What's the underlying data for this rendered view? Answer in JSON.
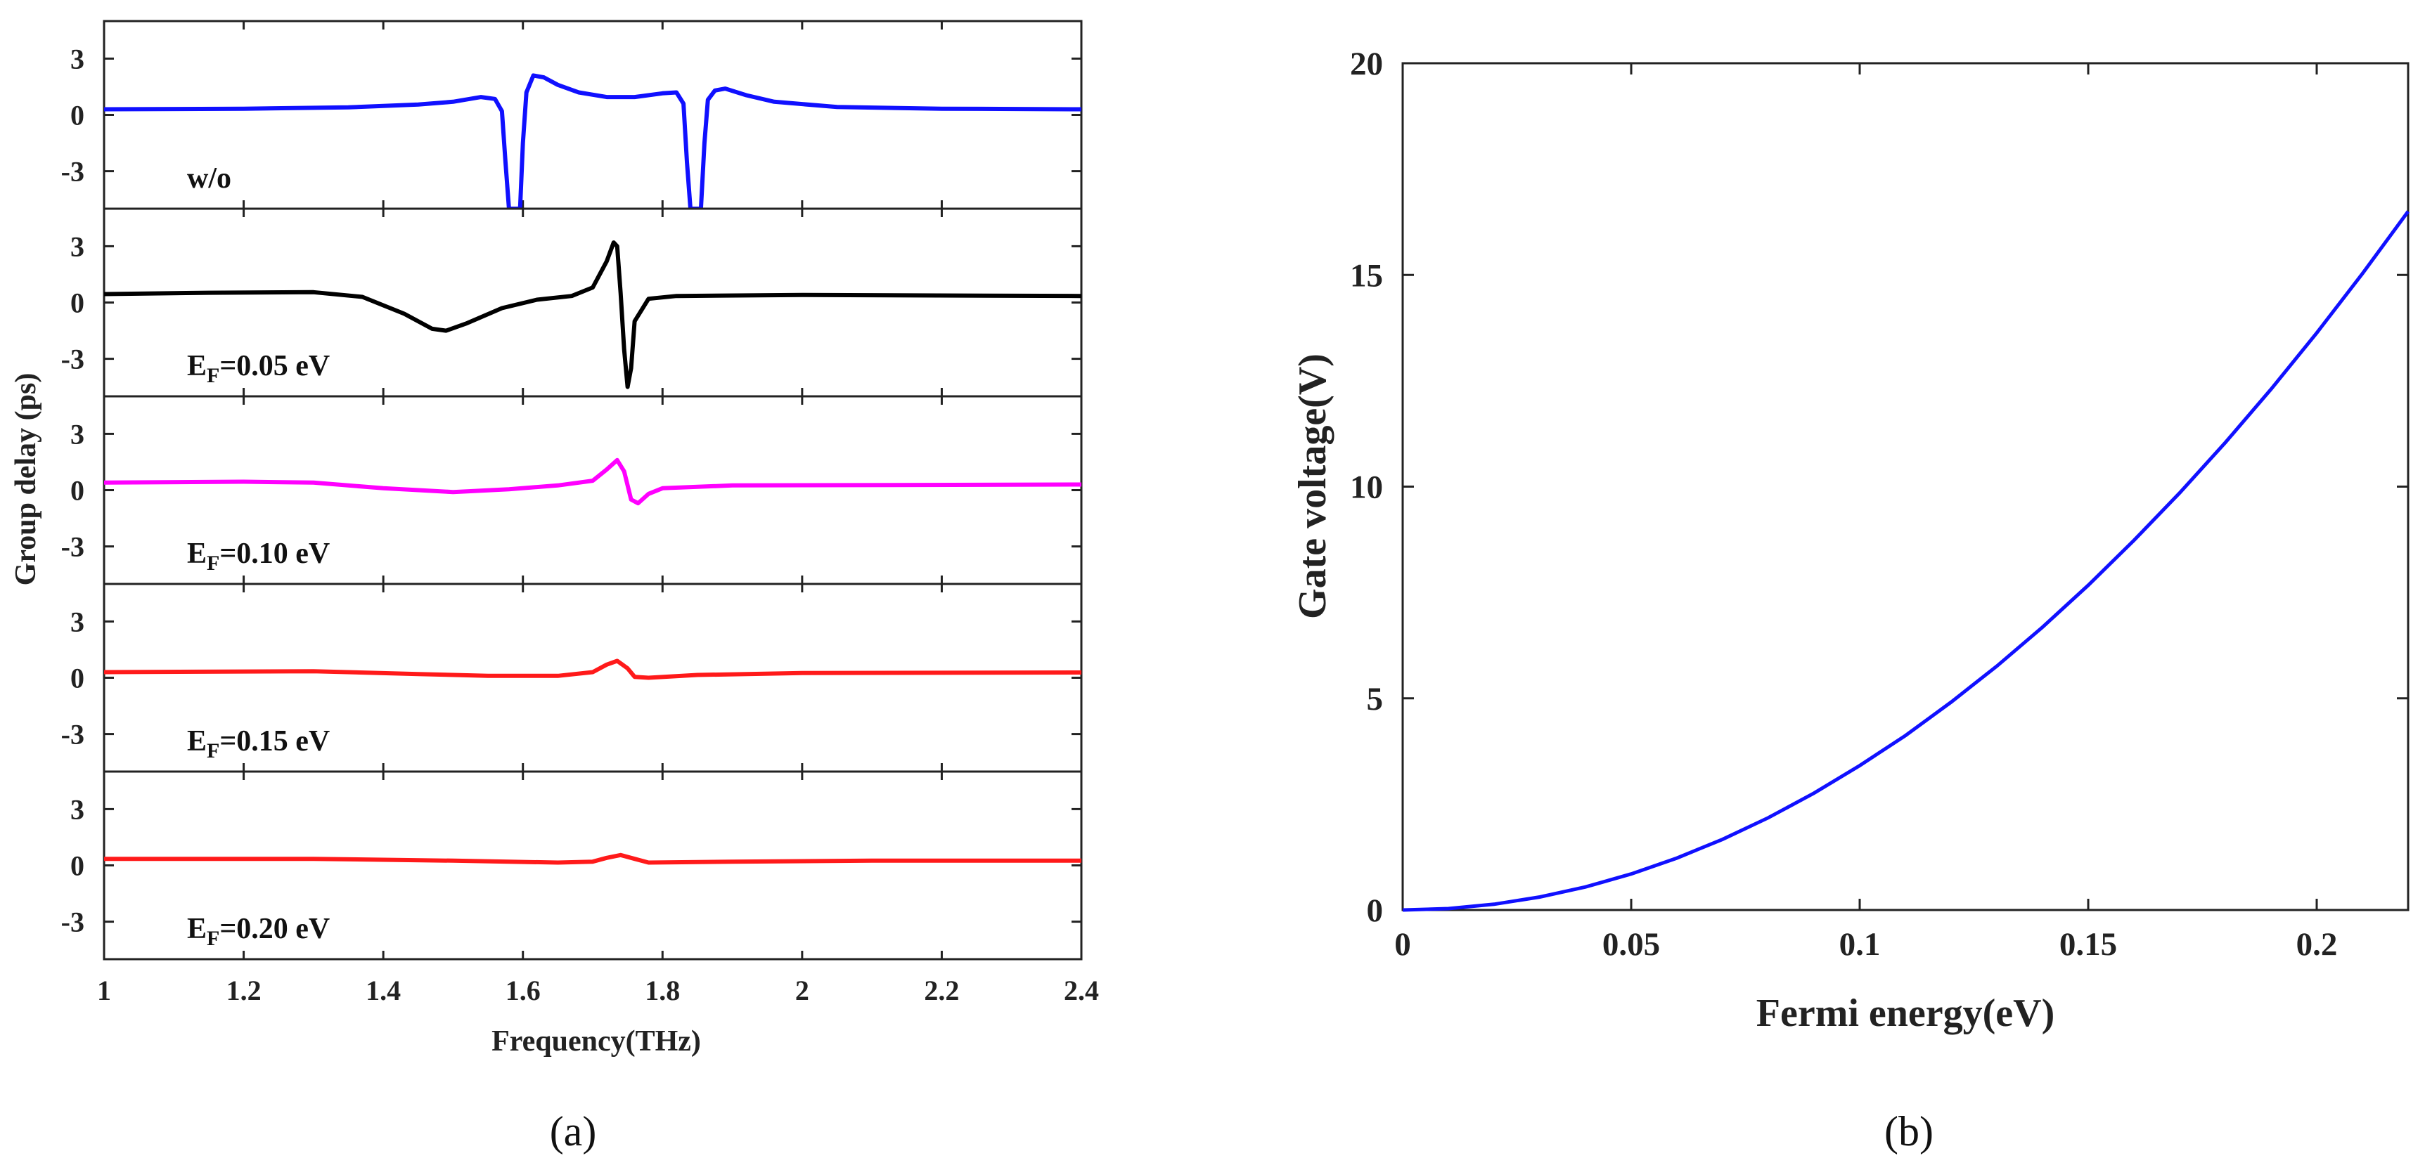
{
  "chart_data": [
    {
      "type": "line",
      "panel": "a",
      "caption": "(a)",
      "xlabel": "Frequency(THz)",
      "ylabel": "Group delay (ps)",
      "xlim": [
        1,
        2.4
      ],
      "xticks": [
        1,
        1.2,
        1.4,
        1.6,
        1.8,
        2,
        2.2,
        2.4
      ],
      "ylim": [
        -5,
        5
      ],
      "yticks": [
        3,
        0,
        -3
      ],
      "subplots": [
        {
          "label": "w/o",
          "color": "#1010ff",
          "points": [
            [
              1.0,
              0.3
            ],
            [
              1.2,
              0.33
            ],
            [
              1.35,
              0.4
            ],
            [
              1.45,
              0.55
            ],
            [
              1.5,
              0.7
            ],
            [
              1.54,
              0.95
            ],
            [
              1.56,
              0.85
            ],
            [
              1.57,
              0.2
            ],
            [
              1.575,
              -2.5
            ],
            [
              1.58,
              -5
            ],
            [
              1.596,
              -5
            ],
            [
              1.6,
              -1.5
            ],
            [
              1.605,
              1.2
            ],
            [
              1.615,
              2.1
            ],
            [
              1.63,
              2.0
            ],
            [
              1.65,
              1.6
            ],
            [
              1.68,
              1.2
            ],
            [
              1.72,
              0.95
            ],
            [
              1.76,
              0.95
            ],
            [
              1.8,
              1.15
            ],
            [
              1.82,
              1.2
            ],
            [
              1.83,
              0.6
            ],
            [
              1.835,
              -2.5
            ],
            [
              1.84,
              -5
            ],
            [
              1.855,
              -5
            ],
            [
              1.86,
              -1.5
            ],
            [
              1.865,
              0.8
            ],
            [
              1.875,
              1.3
            ],
            [
              1.89,
              1.4
            ],
            [
              1.92,
              1.05
            ],
            [
              1.96,
              0.7
            ],
            [
              2.05,
              0.42
            ],
            [
              2.2,
              0.33
            ],
            [
              2.4,
              0.3
            ]
          ]
        },
        {
          "label": "EF=0.05 eV",
          "sublabel_base": "E",
          "sublabel_sub": "F",
          "sublabel_rest": "=0.05 eV",
          "color": "#000000",
          "points": [
            [
              1.0,
              0.45
            ],
            [
              1.15,
              0.52
            ],
            [
              1.3,
              0.55
            ],
            [
              1.37,
              0.3
            ],
            [
              1.43,
              -0.6
            ],
            [
              1.47,
              -1.4
            ],
            [
              1.49,
              -1.5
            ],
            [
              1.52,
              -1.1
            ],
            [
              1.57,
              -0.3
            ],
            [
              1.62,
              0.15
            ],
            [
              1.67,
              0.35
            ],
            [
              1.7,
              0.8
            ],
            [
              1.72,
              2.2
            ],
            [
              1.73,
              3.2
            ],
            [
              1.735,
              3.0
            ],
            [
              1.74,
              0.5
            ],
            [
              1.745,
              -2.5
            ],
            [
              1.75,
              -4.5
            ],
            [
              1.755,
              -3.5
            ],
            [
              1.76,
              -1.0
            ],
            [
              1.78,
              0.2
            ],
            [
              1.82,
              0.35
            ],
            [
              2.0,
              0.4
            ],
            [
              2.4,
              0.35
            ]
          ]
        },
        {
          "label": "EF=0.10 eV",
          "sublabel_base": "E",
          "sublabel_sub": "F",
          "sublabel_rest": "=0.10 eV",
          "color": "#ff00ff",
          "points": [
            [
              1.0,
              0.4
            ],
            [
              1.2,
              0.45
            ],
            [
              1.3,
              0.4
            ],
            [
              1.4,
              0.1
            ],
            [
              1.5,
              -0.1
            ],
            [
              1.58,
              0.05
            ],
            [
              1.65,
              0.25
            ],
            [
              1.7,
              0.5
            ],
            [
              1.72,
              1.1
            ],
            [
              1.735,
              1.6
            ],
            [
              1.745,
              1.0
            ],
            [
              1.755,
              -0.5
            ],
            [
              1.765,
              -0.7
            ],
            [
              1.78,
              -0.2
            ],
            [
              1.8,
              0.1
            ],
            [
              1.9,
              0.25
            ],
            [
              2.4,
              0.3
            ]
          ]
        },
        {
          "label": "EF=0.15 eV",
          "sublabel_base": "E",
          "sublabel_sub": "F",
          "sublabel_rest": "=0.15 eV",
          "color": "#ff1a1a",
          "points": [
            [
              1.0,
              0.3
            ],
            [
              1.3,
              0.35
            ],
            [
              1.45,
              0.2
            ],
            [
              1.55,
              0.1
            ],
            [
              1.65,
              0.1
            ],
            [
              1.7,
              0.3
            ],
            [
              1.72,
              0.7
            ],
            [
              1.735,
              0.9
            ],
            [
              1.75,
              0.5
            ],
            [
              1.76,
              0.05
            ],
            [
              1.78,
              0.0
            ],
            [
              1.85,
              0.15
            ],
            [
              2.0,
              0.25
            ],
            [
              2.4,
              0.28
            ]
          ]
        },
        {
          "label": "EF=0.20 eV",
          "sublabel_base": "E",
          "sublabel_sub": "F",
          "sublabel_rest": "=0.20 eV",
          "color": "#ff1a1a",
          "points": [
            [
              1.0,
              0.35
            ],
            [
              1.3,
              0.35
            ],
            [
              1.5,
              0.25
            ],
            [
              1.65,
              0.15
            ],
            [
              1.7,
              0.2
            ],
            [
              1.72,
              0.4
            ],
            [
              1.74,
              0.55
            ],
            [
              1.76,
              0.35
            ],
            [
              1.78,
              0.15
            ],
            [
              1.9,
              0.2
            ],
            [
              2.1,
              0.25
            ],
            [
              2.4,
              0.25
            ]
          ]
        }
      ]
    },
    {
      "type": "line",
      "panel": "b",
      "caption": "(b)",
      "xlabel": "Fermi energy(eV)",
      "ylabel": "Gate voltage(V)",
      "xlim": [
        0,
        0.22
      ],
      "xticks": [
        0,
        0.05,
        0.1,
        0.15,
        0.2
      ],
      "ylim": [
        0,
        20
      ],
      "yticks": [
        0,
        5,
        10,
        15,
        20
      ],
      "color": "#1010ff",
      "series": [
        {
          "name": "Gate voltage",
          "x": [
            0,
            0.01,
            0.02,
            0.03,
            0.04,
            0.05,
            0.06,
            0.07,
            0.08,
            0.09,
            0.1,
            0.11,
            0.12,
            0.13,
            0.14,
            0.15,
            0.16,
            0.17,
            0.18,
            0.19,
            0.2,
            0.21,
            0.22
          ],
          "y": [
            0,
            0.034,
            0.136,
            0.307,
            0.545,
            0.852,
            1.227,
            1.67,
            2.18,
            2.76,
            3.41,
            4.12,
            4.91,
            5.76,
            6.68,
            7.67,
            8.73,
            9.85,
            11.04,
            12.3,
            13.63,
            15.03,
            16.5
          ]
        }
      ]
    }
  ]
}
